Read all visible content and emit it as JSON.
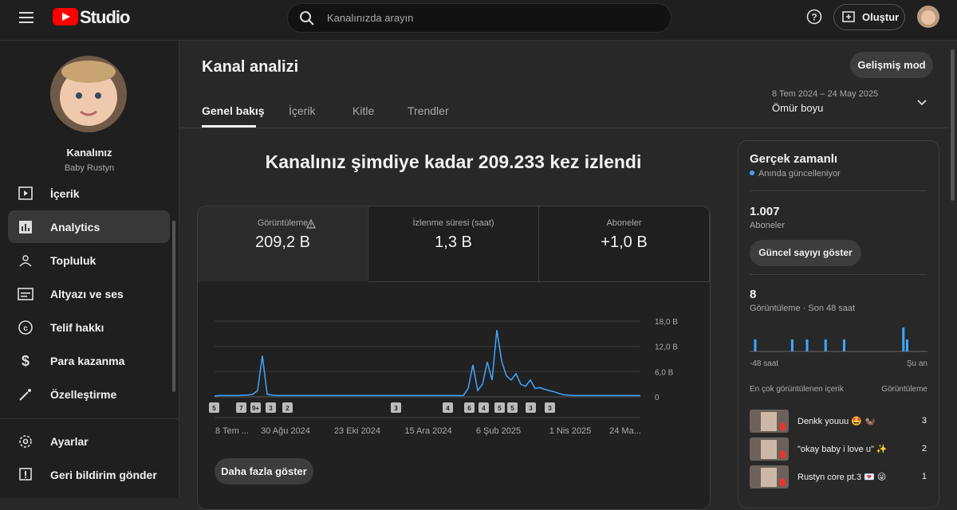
{
  "topbar": {
    "logo": "Studio",
    "search_placeholder": "Kanalınızda arayın",
    "create": "Oluştur"
  },
  "sidebar": {
    "channel_title": "Kanalınız",
    "channel_name": "Baby Rustyn",
    "nav": [
      "İçerik",
      "Analytics",
      "Topluluk",
      "Altyazı ve ses",
      "Telif hakkı",
      "Para kazanma",
      "Özelleştirme"
    ],
    "footer": [
      "Ayarlar",
      "Geri bildirim gönder"
    ]
  },
  "header": {
    "title": "Kanal analizi",
    "advanced": "Gelişmiş mod",
    "tabs": [
      "Genel bakış",
      "İçerik",
      "Kitle",
      "Trendler"
    ],
    "date_range": "8 Tem 2024 – 24 May 2025",
    "period": "Ömür boyu"
  },
  "headline": "Kanalınız şimdiye kadar 209.233 kez izlendi",
  "metrics": [
    {
      "label": "Görüntüleme",
      "value": "209,2 B"
    },
    {
      "label": "İzlenme süresi (saat)",
      "value": "1,3 B"
    },
    {
      "label": "Aboneler",
      "value": "+1,0 B"
    }
  ],
  "chart": {
    "type": "line",
    "color": "#3ea6ff",
    "ylim": [
      0,
      18000
    ],
    "yticks": [
      0,
      {
        "value": 6000,
        "label": "6,0 B"
      },
      {
        "value": 12000,
        "label": "12,0 B"
      },
      {
        "value": 18000,
        "label": "18,0 B"
      }
    ],
    "x_labels": [
      "8 Tem ...",
      "30 Ağu 2024",
      "23 Eki 2024",
      "15 Ara 2024",
      "6 Şub 2025",
      "1 Nis 2025",
      "24 Ma..."
    ],
    "values": [
      200,
      300,
      300,
      300,
      300,
      300,
      400,
      400,
      600,
      1500,
      9800,
      600,
      400,
      300,
      300,
      300,
      300,
      300,
      300,
      300,
      300,
      300,
      300,
      300,
      300,
      300,
      300,
      300,
      300,
      300,
      300,
      300,
      300,
      300,
      300,
      300,
      300,
      300,
      300,
      300,
      300,
      300,
      300,
      300,
      300,
      300,
      300,
      300,
      300,
      300,
      300,
      300,
      300,
      2000,
      7600,
      1500,
      3000,
      8300,
      4000,
      15900,
      8500,
      5000,
      4000,
      5500,
      3000,
      2500,
      4000,
      2000,
      2200,
      1800,
      1500,
      1200,
      800,
      500,
      400,
      300,
      300,
      300,
      300,
      300,
      300,
      300,
      300,
      300,
      300,
      300,
      300,
      300,
      300,
      300
    ],
    "markers": [
      5,
      7,
      "9+",
      3,
      2,
      3,
      4,
      6,
      4,
      5,
      5,
      3,
      3
    ]
  },
  "show_more": "Daha fazla göster",
  "realtime": {
    "title": "Gerçek zamanlı",
    "subtitle": "Anında güncelleniyor",
    "subscribers": {
      "value": "1.007",
      "label": "Aboneler"
    },
    "show_count": "Güncel sayıyı göster",
    "views": {
      "value": "8",
      "label": "Görüntüleme · Son 48 saat"
    },
    "bars": [
      0,
      1,
      0,
      0,
      0,
      0,
      0,
      0,
      0,
      0,
      0,
      1,
      0,
      0,
      0,
      1,
      0,
      0,
      0,
      0,
      1,
      0,
      0,
      0,
      0,
      1,
      0,
      0,
      0,
      0,
      0,
      0,
      0,
      0,
      0,
      0,
      0,
      0,
      0,
      0,
      0,
      2,
      1,
      0,
      0,
      0,
      0,
      0
    ],
    "axis": [
      "-48 saat",
      "Şu an"
    ],
    "top_header": "En çok görüntülenen içerik",
    "top_col": "Görüntüleme",
    "top": [
      {
        "title": "Denkk youuu 🤩 🦦",
        "views": 3
      },
      {
        "title": "\"okay baby i love u\" ✨",
        "views": 2
      },
      {
        "title": "Rustyn core pt.3 💌 😜",
        "views": 1
      }
    ]
  }
}
